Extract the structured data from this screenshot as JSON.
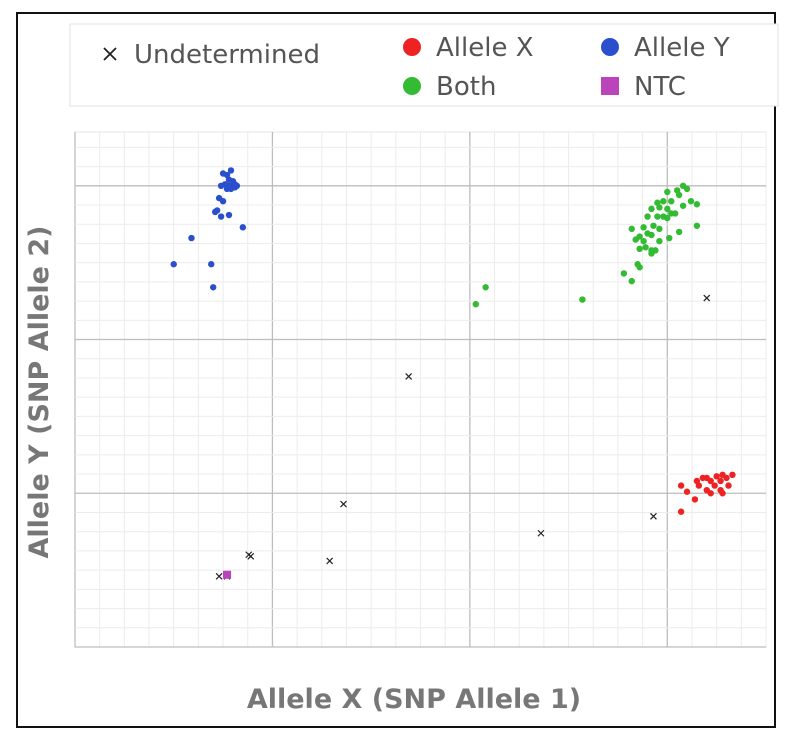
{
  "chart_data": {
    "type": "scatter",
    "xlabel": "Allele X (SNP Allele 1)",
    "ylabel": "Allele Y (SNP Allele 2)",
    "xlim": [
      0,
      3.5
    ],
    "ylim": [
      0,
      3.35
    ],
    "grid": true,
    "legend_position": "top",
    "legend": [
      {
        "label": "Undetermined",
        "marker": "x",
        "color": "#222222"
      },
      {
        "label": "Allele X",
        "marker": "circle",
        "color": "#ee2222"
      },
      {
        "label": "Allele Y",
        "marker": "circle",
        "color": "#2a4fcc"
      },
      {
        "label": "Both",
        "marker": "circle",
        "color": "#33bb33"
      },
      {
        "label": "NTC",
        "marker": "square",
        "color": "#bb44bb"
      }
    ],
    "series": [
      {
        "label": "Allele Y",
        "marker": "circle",
        "color": "#2a4fcc",
        "x": [
          0.75,
          0.77,
          0.78,
          0.79,
          0.8,
          0.81,
          0.76,
          0.78,
          0.8,
          0.82,
          0.74,
          0.77,
          0.79,
          0.81,
          0.73,
          0.75,
          0.72,
          0.71,
          0.74,
          0.78,
          0.85,
          0.59,
          0.5,
          0.69,
          0.7
        ],
        "y": [
          3.08,
          3.07,
          3.04,
          3.1,
          3.03,
          3.01,
          3.01,
          3.0,
          3.0,
          3.0,
          3.0,
          2.98,
          2.98,
          2.99,
          2.92,
          2.9,
          2.84,
          2.83,
          2.8,
          2.81,
          2.73,
          2.66,
          2.49,
          2.49,
          2.34
        ]
      },
      {
        "label": "Both",
        "marker": "circle",
        "color": "#33bb33",
        "x": [
          3.08,
          3.1,
          3.05,
          3.0,
          3.06,
          3.12,
          3.15,
          3.02,
          2.98,
          2.95,
          3.0,
          3.08,
          3.04,
          2.92,
          2.96,
          3.02,
          2.98,
          2.9,
          2.95,
          3.0,
          3.15,
          2.93,
          2.88,
          2.9,
          2.82,
          2.86,
          2.88,
          2.84,
          2.96,
          2.92,
          2.89,
          2.94,
          3.06,
          2.96,
          3.01,
          2.92,
          2.86,
          2.92,
          2.85,
          2.86,
          2.82,
          2.78,
          2.03,
          2.08,
          2.57
        ],
        "y": [
          3.0,
          2.98,
          2.97,
          2.96,
          2.94,
          2.9,
          2.88,
          2.9,
          2.9,
          2.89,
          2.85,
          2.87,
          2.82,
          2.85,
          2.86,
          2.82,
          2.8,
          2.8,
          2.8,
          2.79,
          2.74,
          2.74,
          2.73,
          2.69,
          2.72,
          2.67,
          2.64,
          2.65,
          2.72,
          2.68,
          2.6,
          2.58,
          2.7,
          2.64,
          2.66,
          2.58,
          2.59,
          2.56,
          2.49,
          2.47,
          2.38,
          2.43,
          2.23,
          2.34,
          2.26
        ]
      },
      {
        "label": "Allele X",
        "marker": "circle",
        "color": "#ee2222",
        "x": [
          3.28,
          3.33,
          3.3,
          3.25,
          3.2,
          3.18,
          3.15,
          3.22,
          3.27,
          3.31,
          3.24,
          3.16,
          3.2,
          3.27,
          3.22,
          3.28,
          3.07,
          3.1,
          3.14,
          3.07
        ],
        "y": [
          1.12,
          1.12,
          1.1,
          1.11,
          1.1,
          1.1,
          1.08,
          1.08,
          1.08,
          1.05,
          1.05,
          1.05,
          1.02,
          1.02,
          1.0,
          1.0,
          1.05,
          1.01,
          0.96,
          0.88
        ]
      },
      {
        "label": "Undetermined",
        "marker": "x",
        "color": "#222222",
        "x": [
          3.2,
          1.69,
          2.93,
          1.36,
          2.36,
          1.29,
          0.89,
          0.88,
          0.77,
          0.73
        ],
        "y": [
          2.27,
          1.76,
          0.85,
          0.93,
          0.74,
          0.56,
          0.59,
          0.6,
          0.46,
          0.46
        ]
      },
      {
        "label": "NTC",
        "marker": "square",
        "color": "#bb44bb",
        "x": [
          0.77
        ],
        "y": [
          0.47
        ]
      }
    ]
  }
}
